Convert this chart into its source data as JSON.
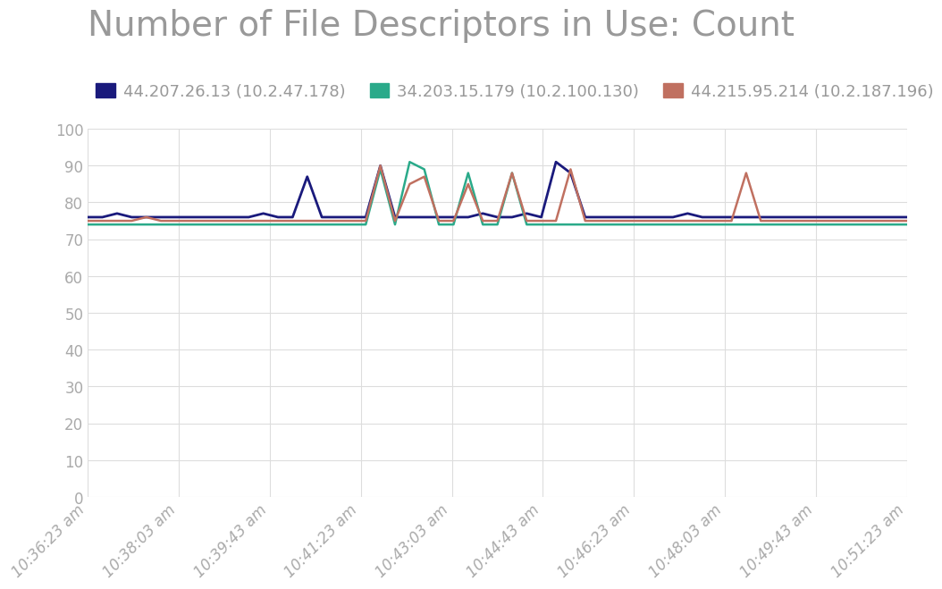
{
  "title": "Number of File Descriptors in Use: Count",
  "title_color": "#999999",
  "background_color": "#ffffff",
  "plot_bg_color": "#ffffff",
  "grid_color": "#dddddd",
  "series": [
    {
      "label": "44.207.26.13 (10.2.47.178)",
      "color": "#1a1a7c",
      "linewidth": 2.0
    },
    {
      "label": "34.203.15.179 (10.2.100.130)",
      "color": "#2aaa8a",
      "linewidth": 1.8
    },
    {
      "label": "44.215.95.214 (10.2.187.196)",
      "color": "#c07060",
      "linewidth": 1.8
    }
  ],
  "x_labels": [
    "10:36:23 am",
    "10:38:03 am",
    "10:39:43 am",
    "10:41:23 am",
    "10:43:03 am",
    "10:44:43 am",
    "10:46:23 am",
    "10:48:03 am",
    "10:49:43 am",
    "10:51:23 am"
  ],
  "ylim": [
    0,
    100
  ],
  "yticks": [
    0,
    10,
    20,
    30,
    40,
    50,
    60,
    70,
    80,
    90,
    100
  ],
  "data_blue": [
    76,
    76,
    77,
    76,
    76,
    76,
    76,
    76,
    76,
    76,
    76,
    76,
    77,
    76,
    76,
    87,
    76,
    76,
    76,
    76,
    90,
    76,
    76,
    76,
    76,
    76,
    76,
    77,
    76,
    76,
    77,
    76,
    91,
    88,
    76,
    76,
    76,
    76,
    76,
    76,
    76,
    77,
    76,
    76,
    76,
    76,
    76,
    76,
    76,
    76,
    76,
    76,
    76,
    76,
    76,
    76,
    76
  ],
  "data_green": [
    74,
    74,
    74,
    74,
    74,
    74,
    74,
    74,
    74,
    74,
    74,
    74,
    74,
    74,
    74,
    74,
    74,
    74,
    74,
    74,
    89,
    74,
    91,
    89,
    74,
    74,
    88,
    74,
    74,
    88,
    74,
    74,
    74,
    74,
    74,
    74,
    74,
    74,
    74,
    74,
    74,
    74,
    74,
    74,
    74,
    74,
    74,
    74,
    74,
    74,
    74,
    74,
    74,
    74,
    74,
    74,
    74
  ],
  "data_red": [
    75,
    75,
    75,
    75,
    76,
    75,
    75,
    75,
    75,
    75,
    75,
    75,
    75,
    75,
    75,
    75,
    75,
    75,
    75,
    75,
    90,
    75,
    85,
    87,
    75,
    75,
    85,
    75,
    75,
    88,
    75,
    75,
    75,
    89,
    75,
    75,
    75,
    75,
    75,
    75,
    75,
    75,
    75,
    75,
    75,
    88,
    75,
    75,
    75,
    75,
    75,
    75,
    75,
    75,
    75,
    75,
    75
  ],
  "n_points": 57,
  "legend_fontsize": 13,
  "tick_color": "#aaaaaa",
  "tick_fontsize": 12,
  "title_fontsize": 28,
  "label_color": "#999999"
}
